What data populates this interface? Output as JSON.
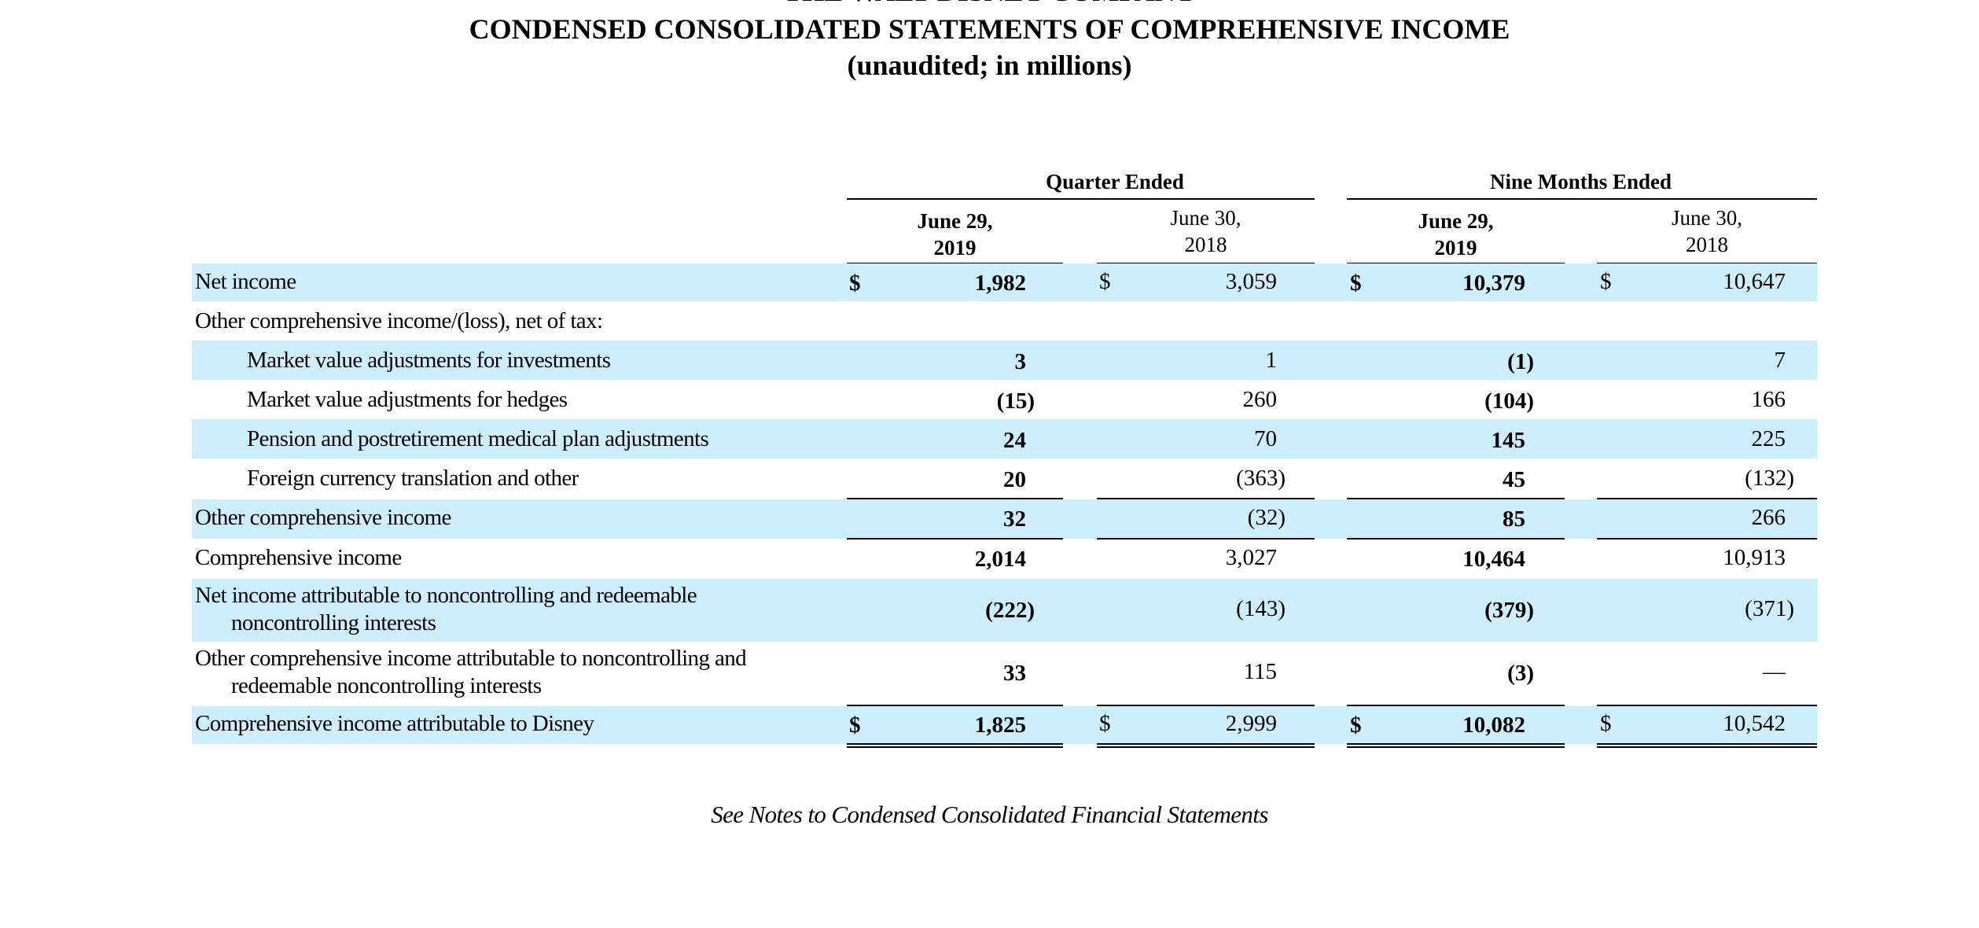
{
  "header": {
    "company": "THE WALT DISNEY COMPANY",
    "title": "CONDENSED CONSOLIDATED STATEMENTS OF COMPREHENSIVE INCOME",
    "subtitle": "(unaudited; in millions)"
  },
  "column_groups": {
    "quarter": "Quarter Ended",
    "nine_months": "Nine Months Ended"
  },
  "columns": [
    {
      "line1": "June 29,",
      "line2": "2019"
    },
    {
      "line1": "June 30,",
      "line2": "2018"
    },
    {
      "line1": "June 29,",
      "line2": "2019"
    },
    {
      "line1": "June 30,",
      "line2": "2018"
    }
  ],
  "currency_symbol": "$",
  "rows": [
    {
      "label1": "Net income",
      "label2": "",
      "values": [
        "1,982",
        "3,059",
        "10,379",
        "10,647"
      ]
    },
    {
      "label1": "Other comprehensive income/(loss), net of tax:",
      "label2": "",
      "values": [
        "",
        "",
        "",
        ""
      ]
    },
    {
      "label1": "Market value adjustments for investments",
      "label2": "",
      "values": [
        "3",
        "1",
        "(1)",
        "7"
      ]
    },
    {
      "label1": "Market value adjustments for hedges",
      "label2": "",
      "values": [
        "(15)",
        "260",
        "(104)",
        "166"
      ]
    },
    {
      "label1": "Pension and postretirement medical plan adjustments",
      "label2": "",
      "values": [
        "24",
        "70",
        "145",
        "225"
      ]
    },
    {
      "label1": "Foreign currency translation and other",
      "label2": "",
      "values": [
        "20",
        "(363)",
        "45",
        "(132)"
      ]
    },
    {
      "label1": "Other comprehensive income",
      "label2": "",
      "values": [
        "32",
        "(32)",
        "85",
        "266"
      ]
    },
    {
      "label1": "Comprehensive income",
      "label2": "",
      "values": [
        "2,014",
        "3,027",
        "10,464",
        "10,913"
      ]
    },
    {
      "label1": "Net income attributable to noncontrolling and redeemable",
      "label2": "noncontrolling interests",
      "values": [
        "(222)",
        "(143)",
        "(379)",
        "(371)"
      ]
    },
    {
      "label1": "Other comprehensive income attributable to noncontrolling and",
      "label2": "redeemable noncontrolling interests",
      "values": [
        "33",
        "115",
        "(3)",
        "—"
      ]
    },
    {
      "label1": "Comprehensive income attributable to Disney",
      "label2": "",
      "values": [
        "1,825",
        "2,999",
        "10,082",
        "10,542"
      ]
    }
  ],
  "footnote": "See Notes to Condensed Consolidated Financial Statements"
}
